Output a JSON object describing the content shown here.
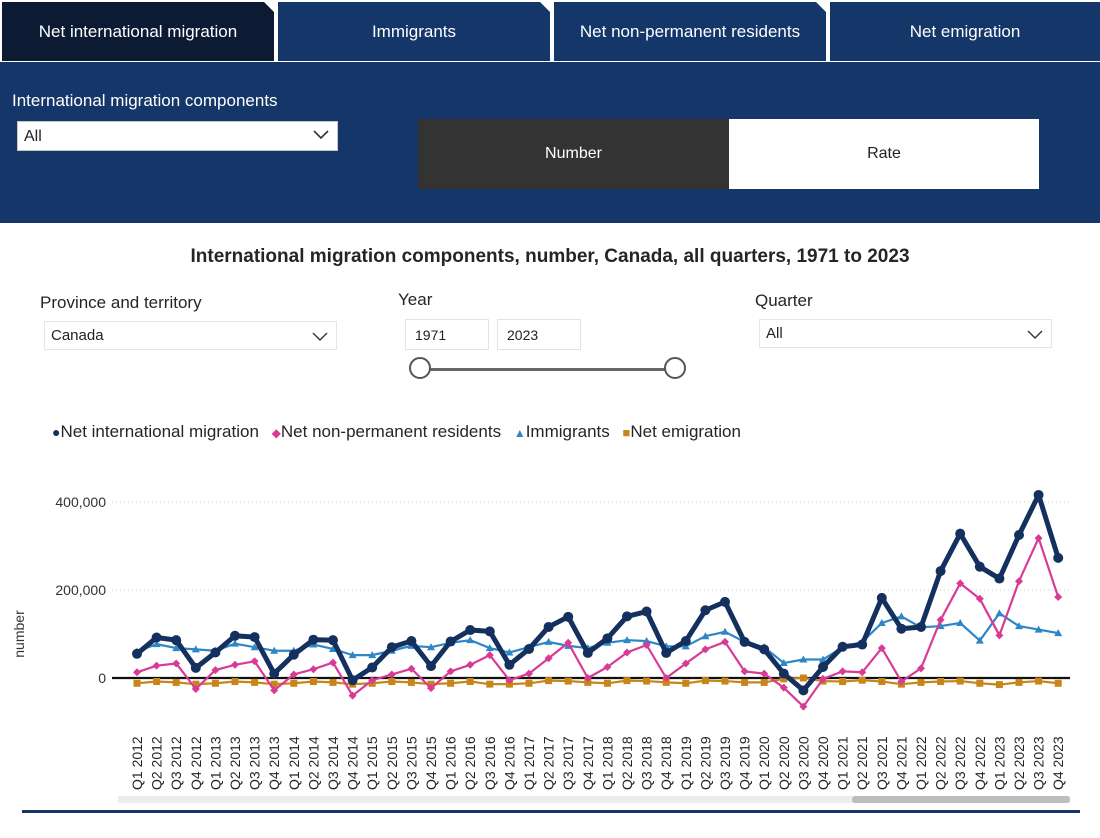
{
  "tabs": [
    {
      "label": "Net international migration"
    },
    {
      "label": "Immigrants"
    },
    {
      "label": "Net non-permanent residents"
    },
    {
      "label": "Net emigration"
    }
  ],
  "components": {
    "label": "International migration components",
    "value": "All"
  },
  "toggle": {
    "number": "Number",
    "rate": "Rate"
  },
  "filters": {
    "province": {
      "label": "Province and territory",
      "value": "Canada"
    },
    "year": {
      "label": "Year",
      "from": "1971",
      "to": "2023"
    },
    "quarter": {
      "label": "Quarter",
      "value": "All"
    }
  },
  "colors": {
    "nim": "#14305e",
    "npr": "#d83b95",
    "imm": "#2f86c6",
    "emi": "#c8861a"
  },
  "chart_data": {
    "type": "line",
    "title": "International migration components, number, Canada, all quarters, 1971 to 2023",
    "ylabel": "number",
    "ylim": [
      -60000,
      440000
    ],
    "yticks": [
      {
        "v": 0,
        "label": "0"
      },
      {
        "v": 200000,
        "label": "200,000"
      },
      {
        "v": 400000,
        "label": "400,000"
      }
    ],
    "grid": true,
    "legend": "top-left",
    "categories": [
      "Q1 2012",
      "Q2 2012",
      "Q3 2012",
      "Q4 2012",
      "Q1 2013",
      "Q2 2013",
      "Q3 2013",
      "Q4 2013",
      "Q1 2014",
      "Q2 2014",
      "Q3 2014",
      "Q4 2014",
      "Q1 2015",
      "Q2 2015",
      "Q3 2015",
      "Q4 2015",
      "Q1 2016",
      "Q2 2016",
      "Q3 2016",
      "Q4 2016",
      "Q1 2017",
      "Q2 2017",
      "Q3 2017",
      "Q4 2017",
      "Q1 2018",
      "Q2 2018",
      "Q3 2018",
      "Q4 2018",
      "Q1 2019",
      "Q2 2019",
      "Q3 2019",
      "Q4 2019",
      "Q1 2020",
      "Q2 2020",
      "Q3 2020",
      "Q4 2020",
      "Q1 2021",
      "Q2 2021",
      "Q3 2021",
      "Q4 2021",
      "Q1 2022",
      "Q2 2022",
      "Q3 2022",
      "Q4 2022",
      "Q1 2023",
      "Q2 2023",
      "Q3 2023",
      "Q4 2023"
    ],
    "series": [
      {
        "name": "Net international migration",
        "key": "nim",
        "marker": "circle",
        "values": [
          55000,
          92000,
          86000,
          23000,
          58000,
          96000,
          93000,
          10000,
          53000,
          87000,
          86000,
          -5000,
          24000,
          70000,
          84000,
          27000,
          83000,
          109000,
          106000,
          30000,
          66000,
          116000,
          139000,
          57000,
          90000,
          140000,
          151000,
          57000,
          84000,
          154000,
          173000,
          82000,
          65000,
          10000,
          -28000,
          25000,
          71000,
          76000,
          182000,
          112000,
          116000,
          243000,
          328000,
          253000,
          226000,
          325000,
          416000,
          273000
        ]
      },
      {
        "name": "Net non-permanent residents",
        "key": "npr",
        "marker": "diamond",
        "values": [
          13000,
          28000,
          33000,
          -25000,
          18000,
          30000,
          38000,
          -28000,
          8000,
          20000,
          35000,
          -40000,
          -5000,
          8000,
          21000,
          -23000,
          15000,
          30000,
          52000,
          -5000,
          10000,
          45000,
          80000,
          0,
          25000,
          58000,
          75000,
          0,
          33000,
          65000,
          82000,
          15000,
          10000,
          -22000,
          -65000,
          -2000,
          15000,
          13000,
          68000,
          -8000,
          22000,
          132000,
          215000,
          180000,
          97000,
          220000,
          318000,
          184000
        ]
      },
      {
        "name": "Immigrants",
        "key": "imm",
        "marker": "triangle",
        "values": [
          60000,
          77000,
          68000,
          65000,
          62000,
          78000,
          70000,
          62000,
          62000,
          76000,
          66000,
          52000,
          52000,
          62000,
          73000,
          70000,
          80000,
          86000,
          68000,
          58000,
          70000,
          82000,
          73000,
          68000,
          80000,
          86000,
          84000,
          72000,
          72000,
          95000,
          105000,
          82000,
          70000,
          34000,
          42000,
          42000,
          70000,
          82000,
          125000,
          140000,
          115000,
          118000,
          125000,
          85000,
          147000,
          118000,
          110000,
          102000
        ]
      },
      {
        "name": "Net emigration",
        "key": "emi",
        "marker": "square",
        "values": [
          -12000,
          -8000,
          -10000,
          -14000,
          -12000,
          -8000,
          -10000,
          -14000,
          -12000,
          -8000,
          -10000,
          -14000,
          -12000,
          -8000,
          -10000,
          -14000,
          -12000,
          -8000,
          -14000,
          -14000,
          -12000,
          -6000,
          -7000,
          -10000,
          -12000,
          -6000,
          -7000,
          -10000,
          -12000,
          -6000,
          -7000,
          -10000,
          -10000,
          -2000,
          0,
          -7000,
          -8000,
          -5000,
          -8000,
          -14000,
          -10000,
          -8000,
          -7000,
          -12000,
          -15000,
          -10000,
          -7000,
          -12000
        ]
      }
    ]
  },
  "legend_items": [
    {
      "symbol": "●",
      "label": "Net international migration",
      "key": "nim"
    },
    {
      "symbol": "◆",
      "label": "Net non-permanent residents",
      "key": "npr"
    },
    {
      "symbol": "▲",
      "label": "Immigrants",
      "key": "imm"
    },
    {
      "symbol": "■",
      "label": "Net emigration",
      "key": "emi"
    }
  ]
}
